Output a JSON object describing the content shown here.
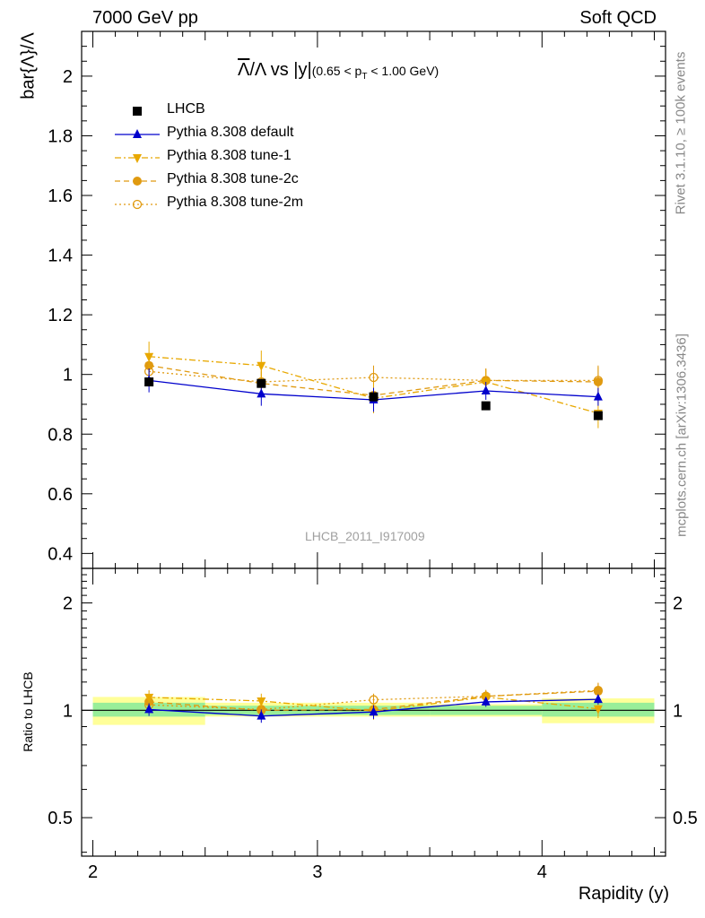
{
  "header": {
    "left": "7000 GeV pp",
    "right": "Soft QCD"
  },
  "title": {
    "main": "Λ/Λ vs |y|",
    "overline_char": "Λ",
    "rest": "/Λ vs |y|",
    "range_open": "(0.65 < p",
    "range_sub": "T",
    "range_close": " < 1.00 GeV)"
  },
  "ylabel_main": "bar{Λ}/Λ",
  "ylabel_ratio": "Ratio to LHCB",
  "xlabel": "Rapidity (y)",
  "watermark": "LHCB_2011_I917009",
  "side_text_top": "Rivet 3.1.10, ≥ 100k events",
  "side_text_bottom": "mcplots.cern.ch [arXiv:1306.3436]",
  "legend": [
    {
      "label": "LHCB",
      "color": "#000000",
      "marker": "square",
      "line": "none"
    },
    {
      "label": "Pythia 8.308 default",
      "color": "#0000cc",
      "marker": "triangle-up",
      "line": "solid"
    },
    {
      "label": "Pythia 8.308 tune-1",
      "color": "#e8a800",
      "marker": "triangle-down",
      "line": "dashdot"
    },
    {
      "label": "Pythia 8.308 tune-2c",
      "color": "#e09a10",
      "marker": "circle",
      "line": "dashed"
    },
    {
      "label": "Pythia 8.308 tune-2m",
      "color": "#e09a10",
      "marker": "circle-open",
      "line": "dotted"
    }
  ],
  "chart_data": {
    "type": "line",
    "x": [
      2.25,
      2.75,
      3.25,
      3.75,
      4.25
    ],
    "x_edges": [
      2.0,
      2.5,
      3.0,
      3.5,
      4.0,
      4.5
    ],
    "xlim": [
      1.95,
      4.55
    ],
    "ylim": [
      0.35,
      2.15
    ],
    "ratio_ylim": [
      0.39,
      2.5
    ],
    "ratio_scale": "log",
    "xticks": [
      2,
      3,
      4
    ],
    "yticks": [
      0.4,
      0.6,
      0.8,
      1,
      1.2,
      1.4,
      1.6,
      1.8,
      2
    ],
    "ratio_yticks": [
      0.5,
      1,
      2
    ],
    "series": [
      {
        "name": "LHCB",
        "values": [
          0.975,
          0.97,
          0.925,
          0.895,
          0.862
        ],
        "err": [
          0.01,
          0.01,
          0.01,
          0.01,
          0.01
        ]
      },
      {
        "name": "Pythia 8.308 default",
        "values": [
          0.98,
          0.935,
          0.915,
          0.945,
          0.925
        ],
        "err": [
          0.04,
          0.04,
          0.04,
          0.03,
          0.03
        ]
      },
      {
        "name": "Pythia 8.308 tune-1",
        "values": [
          1.06,
          1.03,
          0.92,
          0.975,
          0.87
        ],
        "err": [
          0.05,
          0.05,
          0.05,
          0.04,
          0.05
        ]
      },
      {
        "name": "Pythia 8.308 tune-2c",
        "values": [
          1.03,
          0.97,
          0.93,
          0.98,
          0.975
        ],
        "err": [
          0.04,
          0.04,
          0.04,
          0.04,
          0.05
        ]
      },
      {
        "name": "Pythia 8.308 tune-2m",
        "values": [
          1.01,
          0.975,
          0.99,
          0.98,
          0.98
        ],
        "err": [
          0.04,
          0.04,
          0.04,
          0.04,
          0.05
        ]
      }
    ],
    "ratio_bands": {
      "inner": [
        [
          0.96,
          1.05
        ],
        [
          0.97,
          1.03
        ],
        [
          0.97,
          1.03
        ],
        [
          0.97,
          1.03
        ],
        [
          0.96,
          1.05
        ]
      ],
      "outer": [
        [
          0.91,
          1.09
        ],
        [
          0.96,
          1.05
        ],
        [
          0.96,
          1.05
        ],
        [
          0.96,
          1.04
        ],
        [
          0.92,
          1.08
        ]
      ]
    }
  }
}
